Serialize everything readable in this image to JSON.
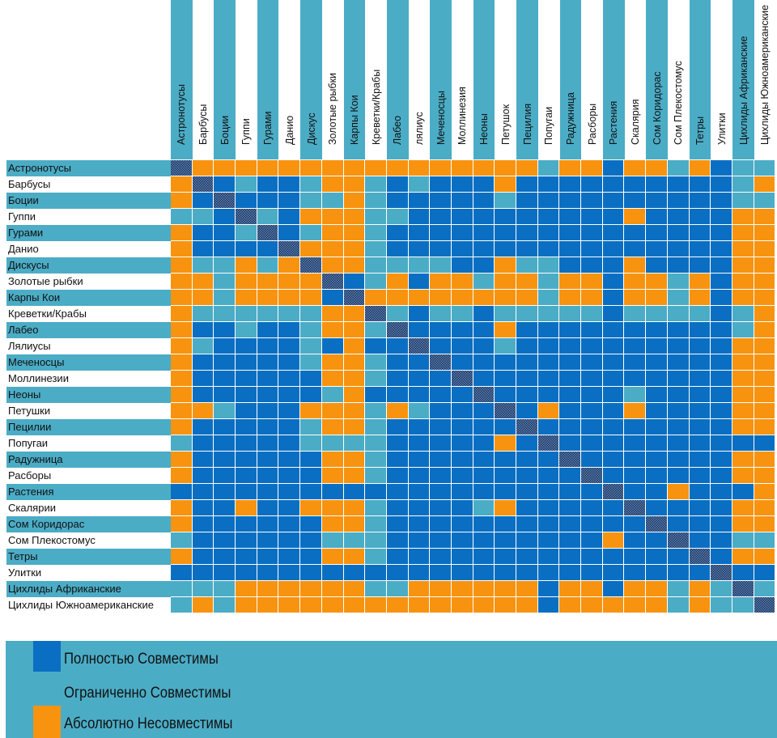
{
  "chart_data": {
    "type": "heatmap",
    "columns": [
      "Астронотусы",
      "Барбусы",
      "Боции",
      "Гуппи",
      "Гурами",
      "Данио",
      "Дискус",
      "Золотые рыбки",
      "Карпы Кои",
      "Креветки/Крабы",
      "Лабео",
      "лялиус",
      "Меченосцы",
      "Моллинезия",
      "Неоны",
      "Петушок",
      "Пецилия",
      "Попугаи",
      "Радужница",
      "Расборы",
      "Растения",
      "Скалярия",
      "Сом Коридорас",
      "Сом Плекостомус",
      "Тетры",
      "Улитки",
      "Цихлиды Африканские",
      "Цихлиды Южноамериканские"
    ],
    "rows": [
      "Астронотусы",
      "Барбусы",
      "Боции",
      "Гуппи",
      "Гурами",
      "Данио",
      "Дискусы",
      "Золотые рыбки",
      "Карпы Кои",
      "Креветки/Крабы",
      "Лабео",
      "Лялиусы",
      "Меченосцы",
      "Моллинезии",
      "Неоны",
      "Петушки",
      "Пецилии",
      "Попугаи",
      "Радужница",
      "Расборы",
      "Растения",
      "Скалярии",
      "Сом Коридорас",
      "Сом Плекостомус",
      "Тетры",
      "Улитки",
      "Цихлиды Африканские",
      "Цихлиды Южноамериканские"
    ],
    "value_codes": {
      "D": "Полностью Совместимы",
      "L": "Ограниченно Совместимы",
      "O": "Абсолютно Несовместимы",
      "X": "self"
    },
    "matrix": [
      "XOOOOOOOOOOOOOOOOLOODOOLODLL",
      "OXDLDDLOOLDLDDDODDDDDDDDDDLO",
      "ODXDDDLLOLDDDDDLDDDDDDDDDDLL",
      "LLDXLDOOOLLDDDDDDDDDDODDDDOO",
      "ODDLXDLOOLDDDDDDDDDDDDDDDDOO",
      "ODDDDXOOOLDDDDDDDDDDDDDDDDOO",
      "OLLOLOXOOLLLLDDOLLDDDODDDDOO",
      "OOLOOOOXDLODOOLOOLOODOOLODOO",
      "OOLOOOODXOOOOOOOOLOODOOLODOO",
      "OLLLLLLOOXLDLLDLLLLLDLLLLDLO",
      "ODDLDDLOOLXDDDDODDDDDDDDDDLO",
      "OLDDDDLDODDXDDDLDDDDDDDDDDOO",
      "ODDDDDLOOLDDXDDDDDDDDDDDDDOO",
      "ODDDDDDOOLDDDXDDDDDDDDDDDDOO",
      "ODDDDDDLODDDDDXDDDDDDLDDDDOO",
      "OOLDDDOOOLOLDDDXDODDDODDDDOO",
      "ODDDDDLOOLDDDDDDXDDDDDDDDDOO",
      "LDDDDDLLLLDDDDDODXDDDDDDDDDD",
      "ODDDDDDOOLDDDDDDDDXDDDDDDDOO",
      "ODDDDDDOOLDDDDDDDDDXDDDDDDOO",
      "DDDDDDDDDDDDDDDDDDDDXDDODDDO",
      "ODDODDOOOLDDDDLODDDDDXDDDDOO",
      "ODDDDDDOOLDDDDDDDDDDDDXDDDOO",
      "LDDDDDDLLLDDDDDDDDDDODDXDDLL",
      "ODDDDDDOOLDDDDDDDDDDDDDDXDOO",
      "DDDDDDDDDDDDDDDDDDDDDDDDDXDD",
      "LLLOOOOOOLLOOOOOODOODOOLOLXL",
      "LOLOOOOOOOOOOOOOODOOOOOLOLLX"
    ],
    "colors": {
      "D": "#0a6fc2",
      "L": "#4bacc6",
      "O": "#f7930f",
      "header": "#4bacc6"
    },
    "legend": {
      "full": "Полностью Совместимы",
      "limited": "Ограниченно Совместимы",
      "incompatible": "Абсолютно Несовместимы"
    },
    "legend_placement": "bottom"
  }
}
